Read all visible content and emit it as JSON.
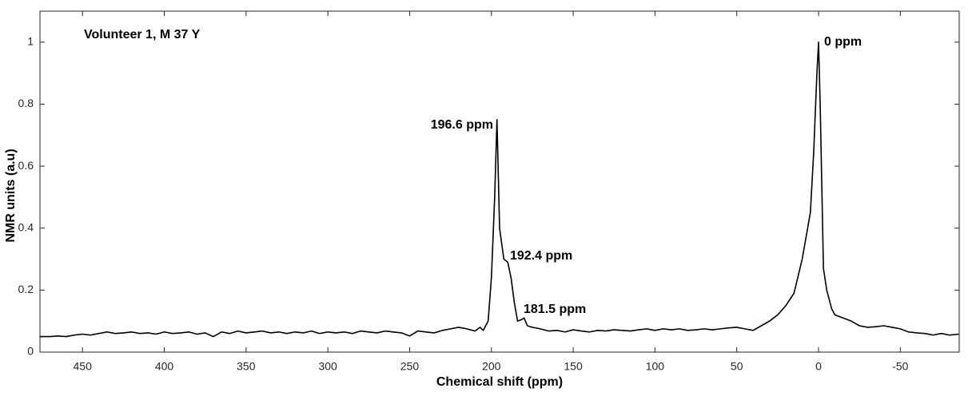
{
  "chart_data": {
    "type": "line",
    "xlabel": "Chemical shift (ppm)",
    "ylabel": "NMR units (a.u)",
    "annotations": [
      "Volunteer 1, M 37 Y",
      "0 ppm",
      "196.6 ppm",
      "192.4 ppm",
      "181.5 ppm"
    ],
    "x": [
      476,
      470,
      465,
      460,
      455,
      450,
      445,
      440,
      435,
      430,
      425,
      420,
      415,
      410,
      405,
      400,
      395,
      390,
      385,
      380,
      375,
      370,
      365,
      360,
      355,
      350,
      345,
      340,
      335,
      330,
      325,
      320,
      315,
      310,
      305,
      300,
      295,
      290,
      285,
      280,
      275,
      270,
      265,
      260,
      255,
      250,
      245,
      240,
      235,
      230,
      225,
      220,
      215,
      210,
      207,
      205,
      202,
      200,
      198,
      196.6,
      195,
      192.4,
      190,
      188,
      186,
      184,
      181.5,
      180,
      178,
      175,
      170,
      165,
      160,
      155,
      150,
      145,
      140,
      135,
      130,
      125,
      120,
      115,
      110,
      105,
      100,
      95,
      90,
      85,
      80,
      75,
      70,
      65,
      60,
      55,
      50,
      45,
      40,
      35,
      30,
      25,
      20,
      15,
      10,
      5,
      3,
      1,
      0,
      -1,
      -3,
      -5,
      -8,
      -10,
      -15,
      -20,
      -25,
      -30,
      -35,
      -40,
      -45,
      -50,
      -55,
      -60,
      -65,
      -70,
      -75,
      -80,
      -86
    ],
    "series": [
      {
        "color": "#000000",
        "values": [
          0.05,
          0.05,
          0.052,
          0.05,
          0.055,
          0.058,
          0.055,
          0.06,
          0.065,
          0.06,
          0.062,
          0.065,
          0.06,
          0.062,
          0.058,
          0.065,
          0.06,
          0.062,
          0.065,
          0.058,
          0.062,
          0.05,
          0.065,
          0.06,
          0.068,
          0.062,
          0.065,
          0.068,
          0.062,
          0.065,
          0.06,
          0.065,
          0.062,
          0.068,
          0.06,
          0.065,
          0.062,
          0.065,
          0.06,
          0.068,
          0.065,
          0.062,
          0.068,
          0.065,
          0.062,
          0.052,
          0.068,
          0.065,
          0.062,
          0.07,
          0.075,
          0.08,
          0.075,
          0.068,
          0.08,
          0.07,
          0.1,
          0.24,
          0.5,
          0.75,
          0.4,
          0.3,
          0.29,
          0.24,
          0.16,
          0.1,
          0.105,
          0.11,
          0.085,
          0.08,
          0.075,
          0.068,
          0.07,
          0.065,
          0.072,
          0.068,
          0.065,
          0.07,
          0.068,
          0.072,
          0.07,
          0.068,
          0.072,
          0.075,
          0.07,
          0.075,
          0.072,
          0.075,
          0.07,
          0.072,
          0.075,
          0.072,
          0.075,
          0.078,
          0.08,
          0.075,
          0.07,
          0.085,
          0.1,
          0.12,
          0.15,
          0.19,
          0.3,
          0.45,
          0.64,
          0.9,
          1,
          0.8,
          0.27,
          0.2,
          0.14,
          0.12,
          0.11,
          0.1,
          0.085,
          0.08,
          0.082,
          0.085,
          0.08,
          0.075,
          0.065,
          0.062,
          0.06,
          0.055,
          0.06,
          0.055,
          0.058
        ]
      }
    ],
    "xlim": [
      476,
      -86
    ],
    "ylim": [
      0,
      1.1
    ],
    "xticks": [
      450,
      400,
      350,
      300,
      250,
      200,
      150,
      100,
      50,
      0,
      -50
    ],
    "yticks": [
      0,
      0.2,
      0.4,
      0.6,
      0.8,
      1
    ],
    "grid": false
  }
}
